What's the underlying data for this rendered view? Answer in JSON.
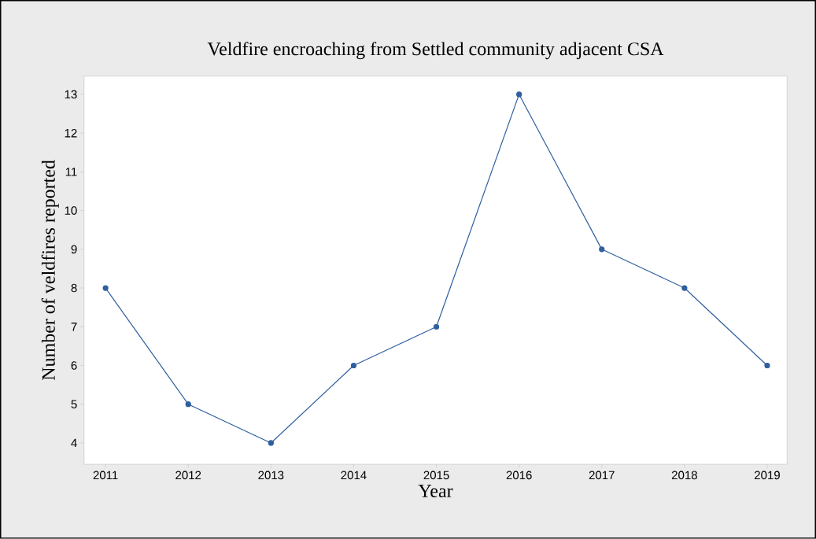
{
  "chart_data": {
    "type": "line",
    "title": "Veldfire encroaching from Settled community adjacent CSA",
    "xlabel": "Year",
    "ylabel": "Number of veldfires reported",
    "x": [
      2011,
      2012,
      2013,
      2014,
      2015,
      2016,
      2017,
      2018,
      2019
    ],
    "values": [
      8,
      5,
      4,
      6,
      7,
      13,
      9,
      8,
      6
    ],
    "color": "#2f5f9e",
    "marker": "circle",
    "line_style": "solid",
    "xlim": [
      2010.74,
      2019.24
    ],
    "ylim": [
      3.45,
      13.47
    ],
    "xticks": [
      2011,
      2012,
      2013,
      2014,
      2015,
      2016,
      2017,
      2018,
      2019
    ],
    "yticks": [
      4,
      5,
      6,
      7,
      8,
      9,
      10,
      11,
      12,
      13
    ]
  }
}
